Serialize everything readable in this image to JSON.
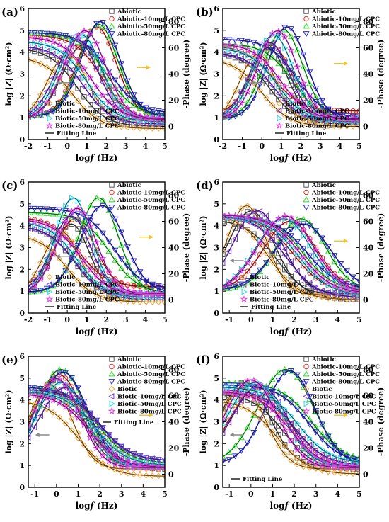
{
  "panel_labels": [
    "(a)",
    "(b)",
    "(c)",
    "(d)",
    "(e)",
    "(f)"
  ],
  "x_axis_label": "log",
  "x_axis_label_italic": "f",
  "x_axis_label_unit": " (Hz)",
  "y_left_label": "log |Z| (Ω·cm²)",
  "y_right_label": "-Phase (degree)",
  "legend_labels": {
    "abiotic": "Abiotic",
    "abiotic10": "Abiotic-10mg/L CPC",
    "abiotic50": "Abiotic-50mg/L CPC",
    "abiotic80": "Abiotic-80mg/L CPC",
    "biotic": "Biotic",
    "biotic10": "Biotic-10mg/L CPC",
    "biotic50": "Biotic-50mg/L CPC",
    "biotic80": "Biotic-80mg/L CPC",
    "fitting": "Fitting Line"
  },
  "colors": {
    "abiotic": "#555555",
    "abiotic10": "#e8332c",
    "abiotic50": "#2ede2e",
    "abiotic80": "#2a2ad8",
    "biotic": "#f2a53a",
    "biotic10": "#7a3ad8",
    "biotic50": "#26d6ea",
    "biotic80": "#e83ae8",
    "fitting": "#111111",
    "arrow_left": "#8a8a8a",
    "arrow_right": "#f2c32a"
  },
  "chart_data": [
    {
      "panel": "(a)",
      "type": "line",
      "xlim": [
        -2,
        5
      ],
      "ylim_left": [
        0,
        6
      ],
      "ylim_right": [
        -10,
        90
      ],
      "xticks": [
        -2,
        -1,
        0,
        1,
        2,
        3,
        4,
        5
      ],
      "yticks_left": [
        0,
        1,
        2,
        3,
        4,
        5,
        6
      ],
      "yticks_right": [
        0,
        20,
        40,
        60,
        80
      ],
      "legend_positions": [
        "top-right",
        "bottom-left"
      ],
      "series": [
        {
          "name": "Abiotic",
          "key": "abiotic",
          "modulus": {
            "lo": 0.6,
            "hi": 4.2,
            "xc": 0.5
          },
          "phase": {
            "peak": 62,
            "xp": 0.8,
            "w": 1.5,
            "base": 5
          }
        },
        {
          "name": "Abiotic-10mg/L CPC",
          "key": "abiotic10",
          "modulus": {
            "lo": 0.8,
            "hi": 4.8,
            "xc": 1.8
          },
          "phase": {
            "peak": 76,
            "xp": 1.5,
            "w": 1.4,
            "base": 8
          }
        },
        {
          "name": "Abiotic-50mg/L CPC",
          "key": "abiotic50",
          "modulus": {
            "lo": 1.1,
            "hi": 4.9,
            "xc": 2.0
          },
          "phase": {
            "peak": 78,
            "xp": 1.6,
            "w": 1.4,
            "base": 8
          }
        },
        {
          "name": "Abiotic-80mg/L CPC",
          "key": "abiotic80",
          "modulus": {
            "lo": 1.2,
            "hi": 4.9,
            "xc": 2.2
          },
          "phase": {
            "peak": 80,
            "xp": 1.7,
            "w": 1.4,
            "base": 8
          }
        },
        {
          "name": "Biotic",
          "key": "biotic",
          "modulus": {
            "lo": 0.5,
            "hi": 3.8,
            "xc": 0.2
          },
          "phase": {
            "peak": 55,
            "xp": 0.0,
            "w": 1.4,
            "base": 5
          }
        },
        {
          "name": "Biotic-10mg/L CPC",
          "key": "biotic10",
          "modulus": {
            "lo": 0.7,
            "hi": 4.3,
            "xc": 0.8
          },
          "phase": {
            "peak": 66,
            "xp": 0.5,
            "w": 1.5,
            "base": 6
          }
        },
        {
          "name": "Biotic-50mg/L CPC",
          "key": "biotic50",
          "modulus": {
            "lo": 0.8,
            "hi": 4.5,
            "xc": 1.0
          },
          "phase": {
            "peak": 70,
            "xp": 0.7,
            "w": 1.5,
            "base": 6
          }
        },
        {
          "name": "Biotic-80mg/L CPC",
          "key": "biotic80",
          "modulus": {
            "lo": 0.9,
            "hi": 4.7,
            "xc": 1.2
          },
          "phase": {
            "peak": 73,
            "xp": 0.9,
            "w": 1.5,
            "base": 6
          }
        }
      ]
    },
    {
      "panel": "(b)",
      "type": "line",
      "xlim": [
        -2,
        5
      ],
      "ylim_left": [
        0,
        6
      ],
      "ylim_right": [
        -10,
        90
      ],
      "xticks": [
        -2,
        -1,
        0,
        1,
        2,
        3,
        4,
        5
      ],
      "yticks_left": [
        0,
        1,
        2,
        3,
        4,
        5,
        6
      ],
      "yticks_right": [
        0,
        20,
        40,
        60,
        80
      ],
      "legend_positions": [
        "top-right",
        "bottom-right"
      ],
      "series": [
        {
          "name": "Abiotic",
          "key": "abiotic",
          "modulus": {
            "lo": 0.7,
            "hi": 4.0,
            "xc": 0.4
          },
          "phase": {
            "peak": 60,
            "xp": 0.3,
            "w": 1.4,
            "base": 5
          }
        },
        {
          "name": "Abiotic-10mg/L CPC",
          "key": "abiotic10",
          "modulus": {
            "lo": 1.3,
            "hi": 4.3,
            "xc": 0.6
          },
          "phase": {
            "peak": 62,
            "xp": 0.5,
            "w": 1.4,
            "base": 10
          }
        },
        {
          "name": "Abiotic-50mg/L CPC",
          "key": "abiotic50",
          "modulus": {
            "lo": 0.9,
            "hi": 4.4,
            "xc": 1.6
          },
          "phase": {
            "peak": 74,
            "xp": 1.1,
            "w": 1.4,
            "base": 6
          }
        },
        {
          "name": "Abiotic-80mg/L CPC",
          "key": "abiotic80",
          "modulus": {
            "lo": 1.0,
            "hi": 4.6,
            "xc": 1.8
          },
          "phase": {
            "peak": 76,
            "xp": 1.3,
            "w": 1.4,
            "base": 6
          }
        },
        {
          "name": "Biotic",
          "key": "biotic",
          "modulus": {
            "lo": 0.6,
            "hi": 3.7,
            "xc": 0.0
          },
          "phase": {
            "peak": 55,
            "xp": -0.2,
            "w": 1.3,
            "base": 4
          }
        },
        {
          "name": "Biotic-10mg/L CPC",
          "key": "biotic10",
          "modulus": {
            "lo": 0.8,
            "hi": 4.0,
            "xc": 0.6
          },
          "phase": {
            "peak": 64,
            "xp": 0.4,
            "w": 1.4,
            "base": 6
          }
        },
        {
          "name": "Biotic-50mg/L CPC",
          "key": "biotic50",
          "modulus": {
            "lo": 0.8,
            "hi": 4.2,
            "xc": 0.8
          },
          "phase": {
            "peak": 70,
            "xp": 0.6,
            "w": 1.4,
            "base": 6
          }
        },
        {
          "name": "Biotic-80mg/L CPC",
          "key": "biotic80",
          "modulus": {
            "lo": 0.9,
            "hi": 4.4,
            "xc": 1.0
          },
          "phase": {
            "peak": 73,
            "xp": 0.8,
            "w": 1.4,
            "base": 6
          }
        }
      ]
    },
    {
      "panel": "(c)",
      "type": "line",
      "xlim": [
        -2,
        5
      ],
      "ylim_left": [
        0,
        6
      ],
      "ylim_right": [
        -10,
        90
      ],
      "xticks": [
        -2,
        -1,
        0,
        1,
        2,
        3,
        4,
        5
      ],
      "yticks_left": [
        0,
        1,
        2,
        3,
        4,
        5,
        6
      ],
      "yticks_right": [
        0,
        20,
        40,
        60,
        80
      ],
      "legend_positions": [
        "top-right",
        "bottom-left"
      ],
      "series": [
        {
          "name": "Abiotic",
          "key": "abiotic",
          "modulus": {
            "lo": 0.6,
            "hi": 4.0,
            "xc": 0.4
          },
          "phase": {
            "peak": 58,
            "xp": 0.2,
            "w": 1.3,
            "base": 4
          }
        },
        {
          "name": "Abiotic-10mg/L CPC",
          "key": "abiotic10",
          "modulus": {
            "lo": 1.2,
            "hi": 4.4,
            "xc": 0.6
          },
          "phase": {
            "peak": 62,
            "xp": 0.4,
            "w": 1.4,
            "base": 10
          }
        },
        {
          "name": "Abiotic-50mg/L CPC",
          "key": "abiotic50",
          "modulus": {
            "lo": 0.9,
            "hi": 4.6,
            "xc": 2.2
          },
          "phase": {
            "peak": 78,
            "xp": 1.6,
            "w": 1.4,
            "base": 6
          }
        },
        {
          "name": "Abiotic-80mg/L CPC",
          "key": "abiotic80",
          "modulus": {
            "lo": 1.1,
            "hi": 4.8,
            "xc": 2.4
          },
          "phase": {
            "peak": 72,
            "xp": 1.8,
            "w": 1.6,
            "base": 6
          }
        },
        {
          "name": "Biotic",
          "key": "biotic",
          "modulus": {
            "lo": 0.5,
            "hi": 3.6,
            "xc": 0.0
          },
          "phase": {
            "peak": 52,
            "xp": -0.3,
            "w": 1.3,
            "base": 4
          }
        },
        {
          "name": "Biotic-10mg/L CPC",
          "key": "biotic10",
          "modulus": {
            "lo": 0.7,
            "hi": 4.0,
            "xc": 0.4
          },
          "phase": {
            "peak": 64,
            "xp": 0.2,
            "w": 1.4,
            "base": 5
          }
        },
        {
          "name": "Biotic-50mg/L CPC",
          "key": "biotic50",
          "modulus": {
            "lo": 0.7,
            "hi": 4.2,
            "xc": 0.5
          },
          "phase": {
            "peak": 78,
            "xp": 0.3,
            "w": 1.3,
            "base": 5
          }
        },
        {
          "name": "Biotic-80mg/L CPC",
          "key": "biotic80",
          "modulus": {
            "lo": 0.8,
            "hi": 4.3,
            "xc": 0.7
          },
          "phase": {
            "peak": 70,
            "xp": 0.5,
            "w": 1.4,
            "base": 5
          }
        }
      ]
    },
    {
      "panel": "(d)",
      "type": "line",
      "xlim": [
        -1.3,
        5
      ],
      "ylim_left": [
        0,
        6
      ],
      "ylim_right": [
        -10,
        90
      ],
      "xticks": [
        -1,
        0,
        1,
        2,
        3,
        4,
        5
      ],
      "yticks_left": [
        0,
        1,
        2,
        3,
        4,
        5,
        6
      ],
      "yticks_right": [
        0,
        20,
        40,
        60,
        80
      ],
      "legend_positions": [
        "top-right",
        "bottom-left"
      ],
      "series": [
        {
          "name": "Abiotic",
          "key": "abiotic",
          "modulus": {
            "lo": 0.6,
            "hi": 4.3,
            "xc": 1.2
          },
          "phase": {
            "peak": 68,
            "xp": 0.0,
            "w": 1.5,
            "base": 5
          }
        },
        {
          "name": "Abiotic-10mg/L CPC",
          "key": "abiotic10",
          "modulus": {
            "lo": 0.9,
            "hi": 4.4,
            "xc": 2.0
          },
          "phase": {
            "peak": 60,
            "xp": 1.8,
            "w": 1.7,
            "base": 8
          }
        },
        {
          "name": "Abiotic-50mg/L CPC",
          "key": "abiotic50",
          "modulus": {
            "lo": 1.0,
            "hi": 4.5,
            "xc": 2.4
          },
          "phase": {
            "peak": 62,
            "xp": 2.3,
            "w": 1.6,
            "base": 8
          }
        },
        {
          "name": "Abiotic-80mg/L CPC",
          "key": "abiotic80",
          "modulus": {
            "lo": 1.1,
            "hi": 4.4,
            "xc": 2.6
          },
          "phase": {
            "peak": 58,
            "xp": 2.4,
            "w": 1.8,
            "base": 8
          }
        },
        {
          "name": "Biotic",
          "key": "biotic",
          "modulus": {
            "lo": 0.6,
            "hi": 4.6,
            "xc": 0.8
          },
          "phase": {
            "peak": 72,
            "xp": -0.2,
            "w": 1.3,
            "base": 4
          }
        },
        {
          "name": "Biotic-10mg/L CPC",
          "key": "biotic10",
          "modulus": {
            "lo": 0.7,
            "hi": 4.5,
            "xc": 1.6
          },
          "phase": {
            "peak": 68,
            "xp": 0.3,
            "w": 1.6,
            "base": 5
          }
        },
        {
          "name": "Biotic-50mg/L CPC",
          "key": "biotic50",
          "modulus": {
            "lo": 0.8,
            "hi": 4.4,
            "xc": 2.2
          },
          "phase": {
            "peak": 62,
            "xp": 1.5,
            "w": 1.8,
            "base": 6
          }
        },
        {
          "name": "Biotic-80mg/L CPC",
          "key": "biotic80",
          "modulus": {
            "lo": 0.9,
            "hi": 4.5,
            "xc": 2.3
          },
          "phase": {
            "peak": 64,
            "xp": 1.6,
            "w": 1.8,
            "base": 6
          }
        }
      ]
    },
    {
      "panel": "(e)",
      "type": "line",
      "xlim": [
        -1.3,
        5
      ],
      "ylim_left": [
        0,
        6
      ],
      "ylim_right": [
        -10,
        90
      ],
      "xticks": [
        -1,
        0,
        1,
        2,
        3,
        4,
        5
      ],
      "yticks_left": [
        0,
        1,
        2,
        3,
        4,
        5,
        6
      ],
      "yticks_right": [
        0,
        20,
        40,
        60,
        80
      ],
      "legend_positions": [
        "top-right-stacked"
      ],
      "series": [
        {
          "name": "Abiotic",
          "key": "abiotic",
          "modulus": {
            "lo": 0.8,
            "hi": 4.4,
            "xc": 1.6
          },
          "phase": {
            "peak": 72,
            "xp": 0.0,
            "w": 1.6,
            "base": 6
          }
        },
        {
          "name": "Abiotic-10mg/L CPC",
          "key": "abiotic10",
          "modulus": {
            "lo": 1.0,
            "hi": 4.5,
            "xc": 1.8
          },
          "phase": {
            "peak": 76,
            "xp": 0.1,
            "w": 1.6,
            "base": 6
          }
        },
        {
          "name": "Abiotic-50mg/L CPC",
          "key": "abiotic50",
          "modulus": {
            "lo": 1.1,
            "hi": 4.6,
            "xc": 1.9
          },
          "phase": {
            "peak": 80,
            "xp": 0.2,
            "w": 1.6,
            "base": 6
          }
        },
        {
          "name": "Abiotic-80mg/L CPC",
          "key": "abiotic80",
          "modulus": {
            "lo": 1.2,
            "hi": 4.6,
            "xc": 2.0
          },
          "phase": {
            "peak": 78,
            "xp": 0.3,
            "w": 1.6,
            "base": 6
          }
        },
        {
          "name": "Biotic",
          "key": "biotic",
          "modulus": {
            "lo": 0.5,
            "hi": 4.0,
            "xc": 1.0
          },
          "phase": {
            "peak": 68,
            "xp": -0.3,
            "w": 1.4,
            "base": 4
          }
        },
        {
          "name": "Biotic-10mg/L CPC",
          "key": "biotic10",
          "modulus": {
            "lo": 1.2,
            "hi": 4.5,
            "xc": 2.0
          },
          "phase": {
            "peak": 66,
            "xp": 0.4,
            "w": 1.7,
            "base": 6
          }
        },
        {
          "name": "Biotic-50mg/L CPC",
          "key": "biotic50",
          "modulus": {
            "lo": 1.0,
            "hi": 4.4,
            "xc": 1.8
          },
          "phase": {
            "peak": 70,
            "xp": 0.2,
            "w": 1.6,
            "base": 5
          }
        },
        {
          "name": "Biotic-80mg/L CPC",
          "key": "biotic80",
          "modulus": {
            "lo": 0.9,
            "hi": 4.3,
            "xc": 1.5
          },
          "phase": {
            "peak": 73,
            "xp": 0.0,
            "w": 1.5,
            "base": 5
          }
        }
      ]
    },
    {
      "panel": "(f)",
      "type": "line",
      "xlim": [
        -1.3,
        5
      ],
      "ylim_left": [
        0,
        6
      ],
      "ylim_right": [
        -10,
        90
      ],
      "xticks": [
        -1,
        0,
        1,
        2,
        3,
        4,
        5
      ],
      "yticks_left": [
        0,
        1,
        2,
        3,
        4,
        5,
        6
      ],
      "yticks_right": [
        0,
        20,
        40,
        60,
        80
      ],
      "legend_positions": [
        "top-right-stacked"
      ],
      "series": [
        {
          "name": "Abiotic",
          "key": "abiotic",
          "modulus": {
            "lo": 0.8,
            "hi": 4.3,
            "xc": 1.5
          },
          "phase": {
            "peak": 70,
            "xp": -0.3,
            "w": 1.6,
            "base": 6
          }
        },
        {
          "name": "Abiotic-10mg/L CPC",
          "key": "abiotic10",
          "modulus": {
            "lo": 1.0,
            "hi": 4.4,
            "xc": 2.0
          },
          "phase": {
            "peak": 66,
            "xp": 0.3,
            "w": 1.8,
            "base": 6
          }
        },
        {
          "name": "Abiotic-50mg/L CPC",
          "key": "abiotic50",
          "modulus": {
            "lo": 1.2,
            "hi": 4.8,
            "xc": 2.8
          },
          "phase": {
            "peak": 80,
            "xp": 1.6,
            "w": 1.8,
            "base": 8
          }
        },
        {
          "name": "Abiotic-80mg/L CPC",
          "key": "abiotic80",
          "modulus": {
            "lo": 1.1,
            "hi": 4.7,
            "xc": 2.7
          },
          "phase": {
            "peak": 79,
            "xp": 1.8,
            "w": 1.6,
            "base": 8
          }
        },
        {
          "name": "Biotic",
          "key": "biotic",
          "modulus": {
            "lo": 0.6,
            "hi": 4.0,
            "xc": 1.2
          },
          "phase": {
            "peak": 66,
            "xp": -0.4,
            "w": 1.5,
            "base": 4
          }
        },
        {
          "name": "Biotic-10mg/L CPC",
          "key": "biotic10",
          "modulus": {
            "lo": 1.0,
            "hi": 4.5,
            "xc": 2.0
          },
          "phase": {
            "peak": 68,
            "xp": 0.4,
            "w": 1.8,
            "base": 6
          }
        },
        {
          "name": "Biotic-50mg/L CPC",
          "key": "biotic50",
          "modulus": {
            "lo": 1.1,
            "hi": 4.6,
            "xc": 2.2
          },
          "phase": {
            "peak": 70,
            "xp": 0.2,
            "w": 1.8,
            "base": 6
          }
        },
        {
          "name": "Biotic-80mg/L CPC",
          "key": "biotic80",
          "modulus": {
            "lo": 0.9,
            "hi": 4.4,
            "xc": 1.8
          },
          "phase": {
            "peak": 72,
            "xp": 0.0,
            "w": 1.7,
            "base": 5
          }
        }
      ]
    }
  ]
}
